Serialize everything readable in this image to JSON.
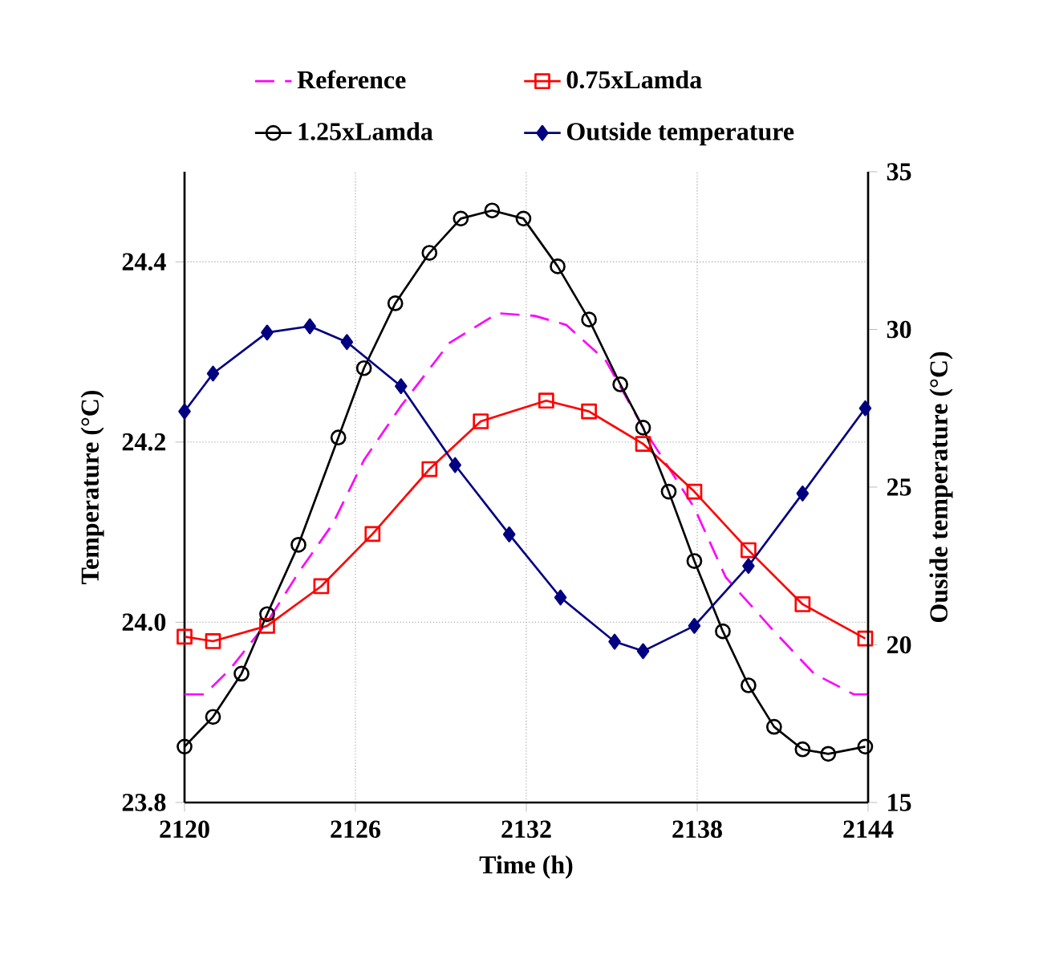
{
  "chart_data": {
    "type": "line",
    "xlabel": "Time (h)",
    "ylabel": "Temperature (°C)",
    "y2label": "Ouside temperature (°C)",
    "xlim": [
      2120,
      2144
    ],
    "xticks": [
      2120,
      2126,
      2132,
      2138,
      2144
    ],
    "ylim": [
      23.8,
      24.5
    ],
    "yticks": [
      23.8,
      {
        "value": 24,
        "label": "24.0"
      },
      24.2,
      24.4
    ],
    "y2lim": [
      15,
      35
    ],
    "y2ticks": [
      15,
      20,
      25,
      30,
      35
    ],
    "grid": true,
    "legend": "top",
    "series": [
      {
        "name": "Reference",
        "color": "#ff00ff",
        "marker": "none",
        "line_style": "dashed",
        "x": [
          2120,
          2120.7,
          2121.6,
          2122.9,
          2124.0,
          2125.2,
          2126.3,
          2127.6,
          2129.3,
          2131.0,
          2132.3,
          2133.4,
          2134.8,
          2136.1,
          2137.9,
          2139.0,
          2140.7,
          2142.1,
          2143.5,
          2144
        ],
        "values": [
          23.92,
          23.92,
          23.948,
          24.0,
          24.055,
          24.109,
          24.18,
          24.24,
          24.31,
          24.343,
          24.34,
          24.33,
          24.29,
          24.216,
          24.127,
          24.05,
          23.99,
          23.943,
          23.92,
          23.92
        ]
      },
      {
        "name": "0.75xLamda",
        "color": "#ff0000",
        "marker": "square",
        "line_style": "solid",
        "x": [
          2120,
          2121,
          2122.9,
          2124.8,
          2126.6,
          2128.6,
          2130.4,
          2132.7,
          2134.2,
          2136.1,
          2137.9,
          2139.8,
          2141.7,
          2143.9
        ],
        "values": [
          23.984,
          23.979,
          23.996,
          24.04,
          24.098,
          24.17,
          24.223,
          24.246,
          24.234,
          24.198,
          24.145,
          24.08,
          24.02,
          23.982
        ]
      },
      {
        "name": "1.25xLamda",
        "color": "#000000",
        "marker": "circle",
        "line_style": "solid",
        "x": [
          2120,
          2121,
          2122,
          2122.9,
          2124.0,
          2125.4,
          2126.3,
          2127.4,
          2128.6,
          2129.7,
          2130.8,
          2131.9,
          2133.1,
          2134.2,
          2135.3,
          2136.1,
          2137.0,
          2137.9,
          2138.9,
          2139.8,
          2140.7,
          2141.7,
          2142.6,
          2143.9
        ],
        "values": [
          23.862,
          23.895,
          23.943,
          24.009,
          24.086,
          24.205,
          24.282,
          24.354,
          24.41,
          24.448,
          24.457,
          24.448,
          24.395,
          24.336,
          24.264,
          24.216,
          24.145,
          24.068,
          23.99,
          23.93,
          23.884,
          23.859,
          23.854,
          23.862
        ]
      },
      {
        "name": "Outside temperature",
        "color": "#000080",
        "marker": "diamond",
        "line_style": "solid",
        "axis": "y2",
        "x": [
          2120,
          2121,
          2122.9,
          2124.4,
          2125.7,
          2127.6,
          2129.5,
          2131.4,
          2133.2,
          2135.1,
          2136.1,
          2137.9,
          2139.8,
          2141.7,
          2143.9
        ],
        "values": [
          27.4,
          28.6,
          29.9,
          30.1,
          29.6,
          28.2,
          25.7,
          23.5,
          21.5,
          20.1,
          19.8,
          20.6,
          22.5,
          24.8,
          27.5
        ]
      }
    ]
  }
}
